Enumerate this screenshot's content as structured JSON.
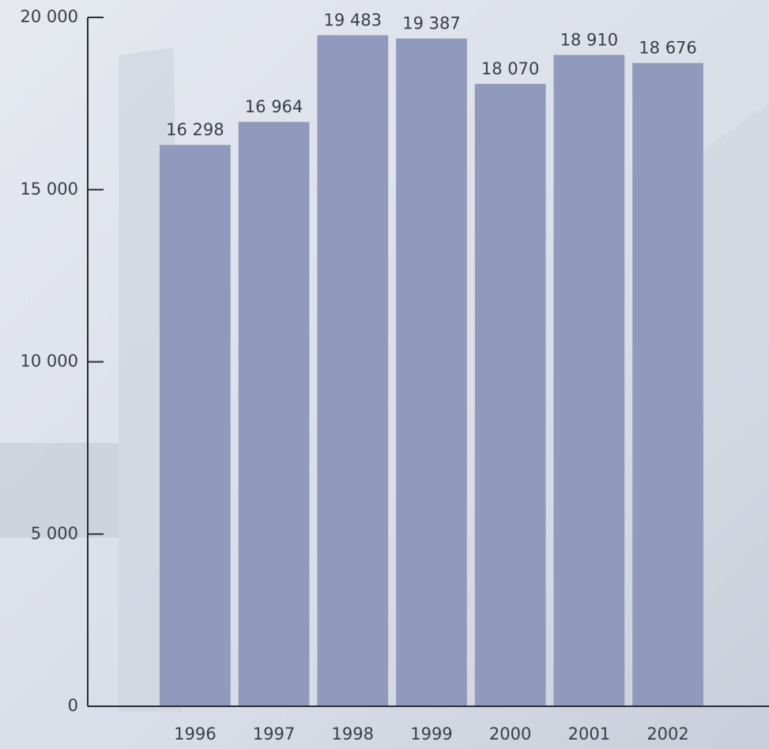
{
  "chart_data": {
    "type": "bar",
    "categories": [
      "1996",
      "1997",
      "1998",
      "1999",
      "2000",
      "2001",
      "2002"
    ],
    "values": [
      16298,
      16964,
      19483,
      19387,
      18070,
      18910,
      18676
    ],
    "value_labels": [
      "16 298",
      "16 964",
      "19 483",
      "19 387",
      "18 070",
      "18 910",
      "18 676"
    ],
    "color": "#8f9abc",
    "ylim": [
      0,
      20000
    ],
    "yticks": [
      0,
      {
        "value": 5000,
        "label": "5 000"
      },
      {
        "value": 10000,
        "label": "10 000"
      },
      {
        "value": 15000,
        "label": "15 000"
      },
      {
        "value": 20000,
        "label": "20 000"
      }
    ]
  }
}
